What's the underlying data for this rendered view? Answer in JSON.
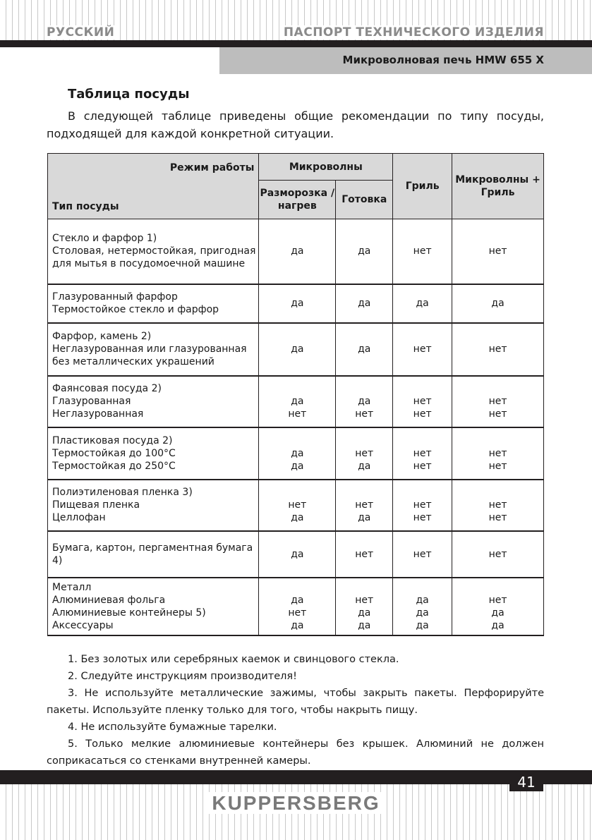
{
  "header": {
    "language": "РУССКИЙ",
    "section": "ПАСПОРТ ТЕХНИЧЕСКОГО ИЗДЕЛИЯ",
    "model": "Микроволновая печь HMW 655 X"
  },
  "title": "Таблица посуды",
  "intro": "В следующей таблице приведены общие рекомендации по типу посуды, подходящей для каждой конкретной ситуации.",
  "table": {
    "mode_label": "Режим работы",
    "type_label": "Тип посуды",
    "microwaves": "Микроволны",
    "defrost": "Размороз­ка / нагрев",
    "cook": "Готовка",
    "grill": "Гриль",
    "combo": "Микроволны + Гриль",
    "rows": [
      {
        "type": [
          "Стекло и фарфор 1)",
          "Столовая, нетермостойкая, пригодная для мытья в посудомоечной машине"
        ],
        "defrost": [
          "да"
        ],
        "cook": [
          "да"
        ],
        "grill": [
          "нет"
        ],
        "combo": [
          "нет"
        ]
      },
      {
        "type": [
          "Глазурованный фарфор",
          "Термостойкое стекло и фарфор"
        ],
        "defrost": [
          "да"
        ],
        "cook": [
          "да"
        ],
        "grill": [
          "да"
        ],
        "combo": [
          "да"
        ]
      },
      {
        "type": [
          "Фарфор, камень 2)",
          "Неглазурованная или глазурованная без металлических украшений"
        ],
        "defrost": [
          "да"
        ],
        "cook": [
          "да"
        ],
        "grill": [
          "нет"
        ],
        "combo": [
          "нет"
        ]
      },
      {
        "type": [
          "Фаянсовая посуда 2)",
          "Глазурованная",
          "Неглазурованная"
        ],
        "defrost": [
          "",
          "да",
          "нет"
        ],
        "cook": [
          "",
          "да",
          "нет"
        ],
        "grill": [
          "",
          "нет",
          "нет"
        ],
        "combo": [
          "",
          "нет",
          "нет"
        ]
      },
      {
        "type": [
          "Пластиковая посуда 2)",
          "Термостойкая до 100°C",
          "Термостойкая до 250°C"
        ],
        "defrost": [
          "",
          "да",
          "да"
        ],
        "cook": [
          "",
          "нет",
          "да"
        ],
        "grill": [
          "",
          "нет",
          "нет"
        ],
        "combo": [
          "",
          "нет",
          "нет"
        ]
      },
      {
        "type": [
          "Полиэтиленовая пленка 3)",
          "Пищевая пленка",
          "Целлофан"
        ],
        "defrost": [
          "",
          "нет",
          "да"
        ],
        "cook": [
          "",
          "нет",
          "да"
        ],
        "grill": [
          "",
          "нет",
          "нет"
        ],
        "combo": [
          "",
          "нет",
          "нет"
        ]
      },
      {
        "type": [
          "Бумага, картон, пергаментная бумага 4)"
        ],
        "defrost": [
          "да"
        ],
        "cook": [
          "нет"
        ],
        "grill": [
          "нет"
        ],
        "combo": [
          "нет"
        ]
      },
      {
        "type": [
          "Металл",
          "Алюминиевая фольга",
          "Алюминиевые контейнеры 5)",
          "Аксессуары"
        ],
        "defrost": [
          "",
          "да",
          "нет",
          "да"
        ],
        "cook": [
          "",
          "нет",
          "да",
          "да"
        ],
        "grill": [
          "",
          "да",
          "да",
          "да"
        ],
        "combo": [
          "",
          "нет",
          "да",
          "да"
        ]
      }
    ]
  },
  "notes": [
    "1. Без золотых или серебряных каемок и свинцового стекла.",
    "2. Следуйте инструкциям производителя!",
    "3. Не используйте металлические зажимы, чтобы закрыть пакеты. Перфорируйте пакеты. Используйте пленку только для того, чтобы накрыть пищу.",
    "4. Не используйте бумажные тарелки.",
    "5. Только мелкие алюминиевые контейнеры без крышек. Алюминий не должен соприкасаться со стенками внутренней камеры."
  ],
  "footer": {
    "page": "41",
    "brand": "KUPPERSBERG"
  }
}
